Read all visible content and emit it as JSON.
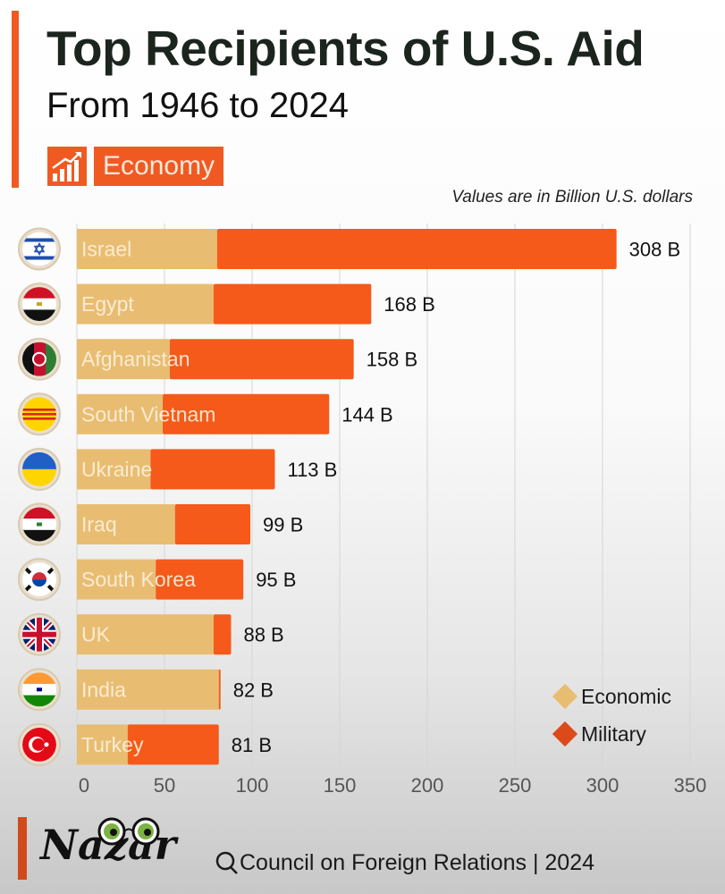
{
  "header": {
    "title": "Top Recipients of U.S. Aid",
    "subtitle": "From 1946 to 2024",
    "tag": "Economy",
    "tag_icon": "rising-bar-chart-icon",
    "note": "Values are in Billion U.S. dollars"
  },
  "footer": {
    "logo": "Nazar",
    "logo_icon": "goggles-eyes-icon",
    "source_icon": "magnifier-icon",
    "source": "Council on Foreign Relations | 2024"
  },
  "colors": {
    "accent": "#f05a22",
    "economic": "#e8bd72",
    "military": "#f55a1a"
  },
  "chart_data": {
    "type": "bar",
    "orientation": "horizontal",
    "stacked": true,
    "title": "Top Recipients of U.S. Aid",
    "subtitle": "From 1946 to 2024",
    "xlabel": "",
    "ylabel": "",
    "unit_note": "Values are in Billion U.S. dollars",
    "xlim": [
      0,
      350
    ],
    "xticks": [
      0,
      50,
      100,
      150,
      200,
      250,
      300,
      350
    ],
    "grid": true,
    "legend_position": "bottom-right",
    "categories": [
      "Israel",
      "Egypt",
      "Afghanistan",
      "South Vietnam",
      "Ukraine",
      "Iraq",
      "South Korea",
      "UK",
      "India",
      "Turkey"
    ],
    "flags": [
      "israel-flag-icon",
      "egypt-flag-icon",
      "afghanistan-flag-icon",
      "south-vietnam-flag-icon",
      "ukraine-flag-icon",
      "iraq-flag-icon",
      "south-korea-flag-icon",
      "uk-flag-icon",
      "india-flag-icon",
      "turkey-flag-icon"
    ],
    "totals": [
      308,
      168,
      158,
      144,
      113,
      99,
      95,
      88,
      82,
      81
    ],
    "total_labels": [
      "308 B",
      "168 B",
      "158 B",
      "144 B",
      "113 B",
      "99 B",
      "95 B",
      "88 B",
      "82 B",
      "81 B"
    ],
    "series": [
      {
        "name": "Economic",
        "values": [
          80,
          78,
          53,
          49,
          42,
          56,
          45,
          78,
          81,
          29
        ]
      },
      {
        "name": "Military",
        "values": [
          228,
          90,
          105,
          95,
          71,
          43,
          50,
          10,
          1,
          52
        ]
      }
    ]
  }
}
